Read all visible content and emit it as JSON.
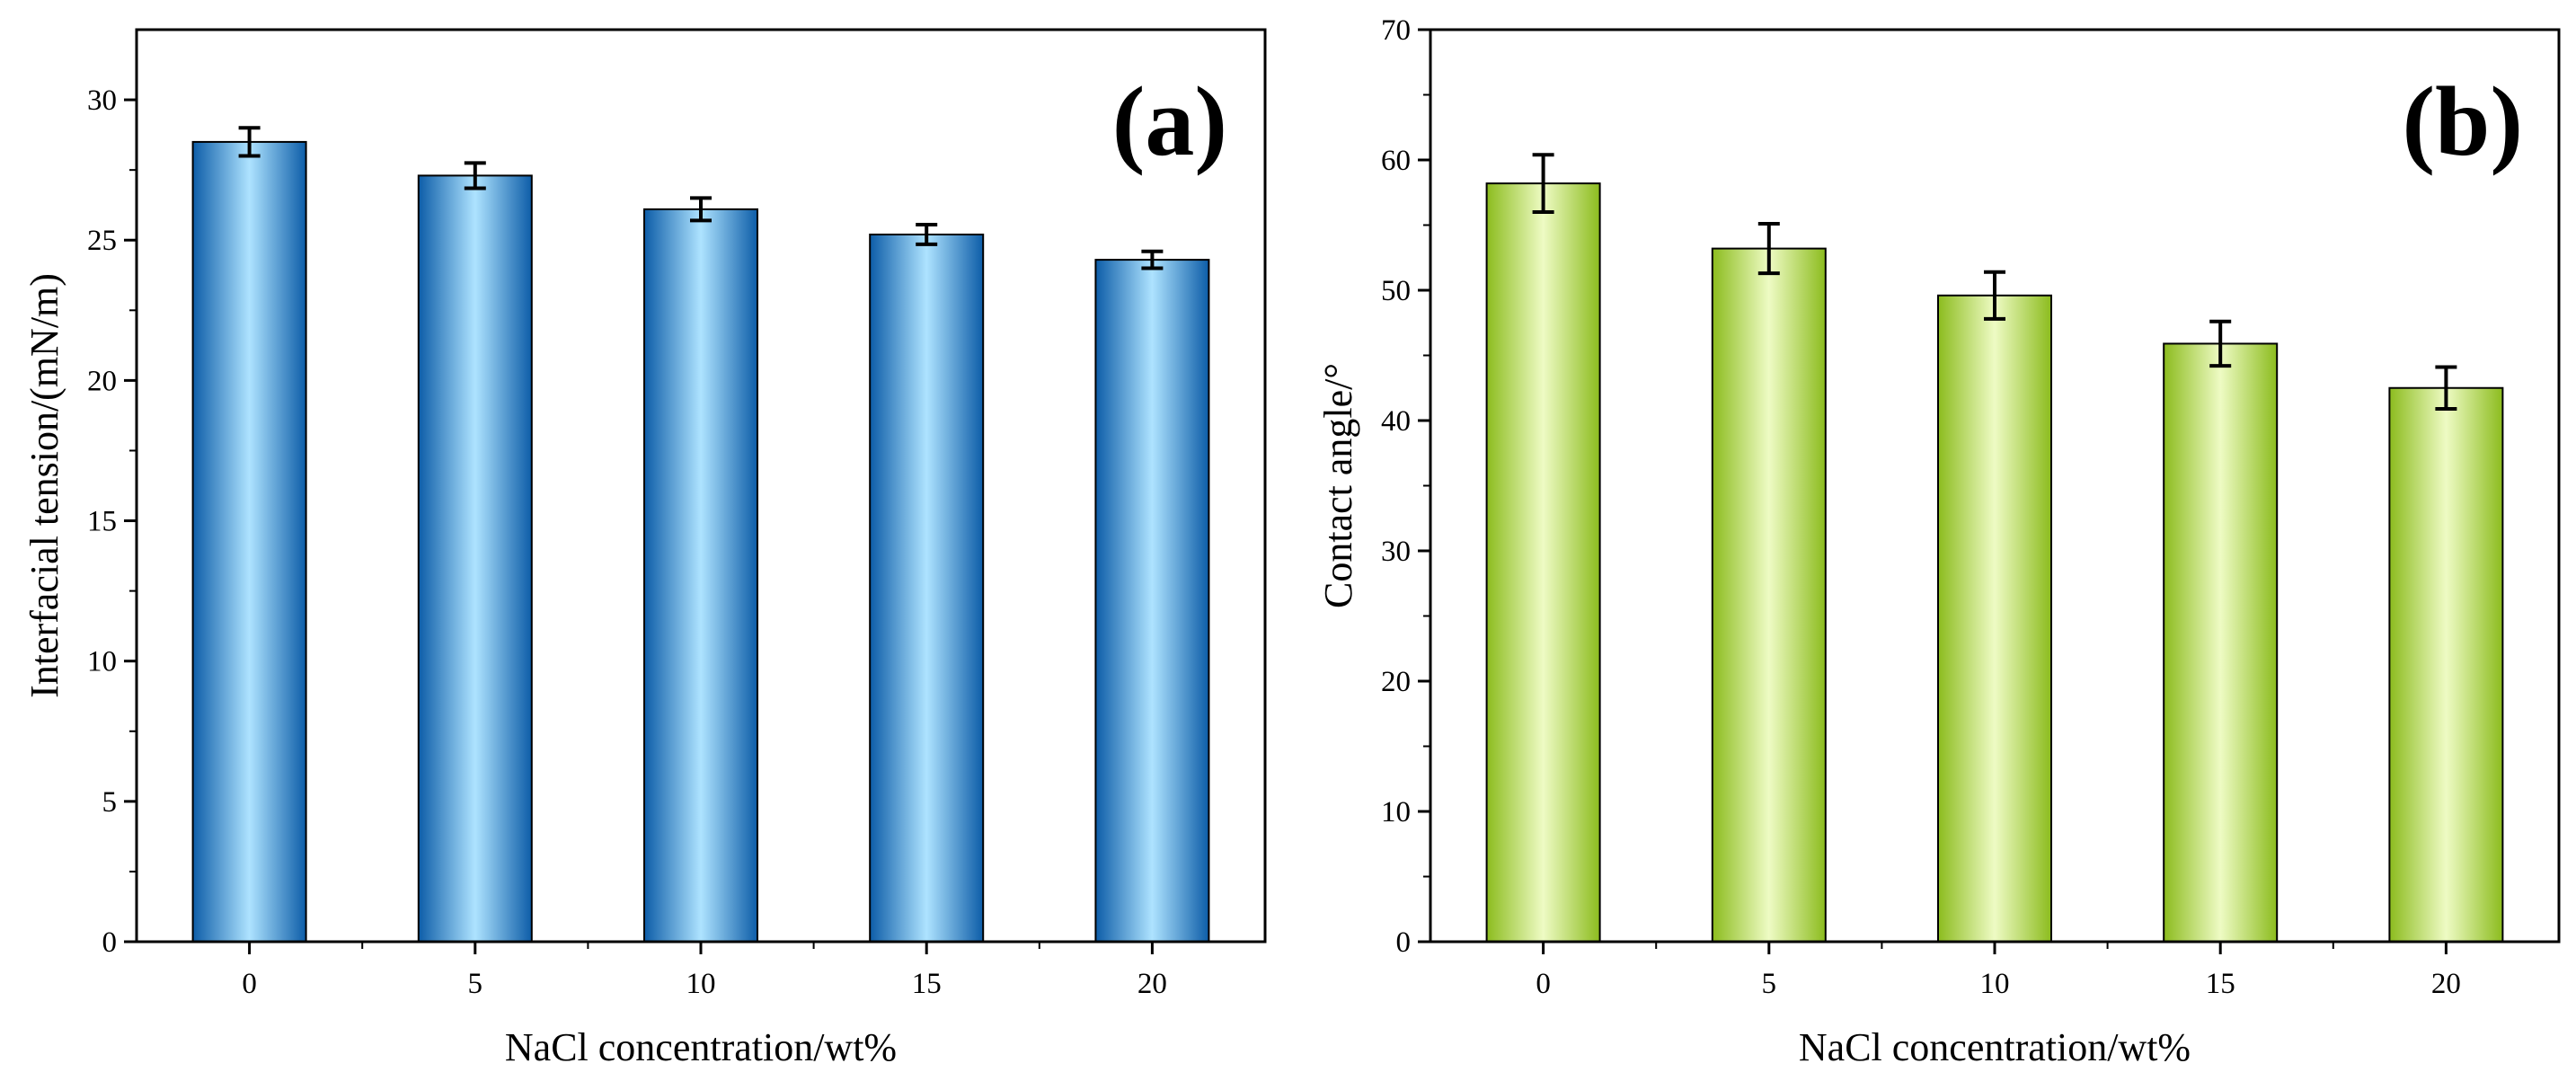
{
  "chart_data": [
    {
      "type": "bar",
      "panel_label": "(a)",
      "categories": [
        "0",
        "5",
        "10",
        "15",
        "20"
      ],
      "values": [
        28.5,
        27.3,
        26.1,
        25.2,
        24.3
      ],
      "errors": [
        0.5,
        0.45,
        0.4,
        0.35,
        0.3
      ],
      "xlabel": "NaCl concentration/wt%",
      "ylabel": "Interfacial tension/(mN/m)",
      "ylim": [
        0,
        32.5
      ],
      "yticks": [
        0,
        5,
        10,
        15,
        20,
        25,
        30
      ],
      "minor_tick_step": 2.5,
      "bar_edge_color": "#0d5da8",
      "bar_center_color": "#aee3ff",
      "bar_outline_color": "#000000"
    },
    {
      "type": "bar",
      "panel_label": "(b)",
      "categories": [
        "0",
        "5",
        "10",
        "15",
        "20"
      ],
      "values": [
        58.2,
        53.2,
        49.6,
        45.9,
        42.5
      ],
      "errors": [
        2.2,
        1.9,
        1.8,
        1.7,
        1.6
      ],
      "xlabel": "NaCl concentration/wt%",
      "ylabel": "Contact angle/°",
      "ylim": [
        0,
        70
      ],
      "yticks": [
        0,
        10,
        20,
        30,
        40,
        50,
        60,
        70
      ],
      "minor_tick_step": 5,
      "bar_edge_color": "#8cbc1e",
      "bar_center_color": "#eefbc4",
      "bar_outline_color": "#000000"
    }
  ]
}
